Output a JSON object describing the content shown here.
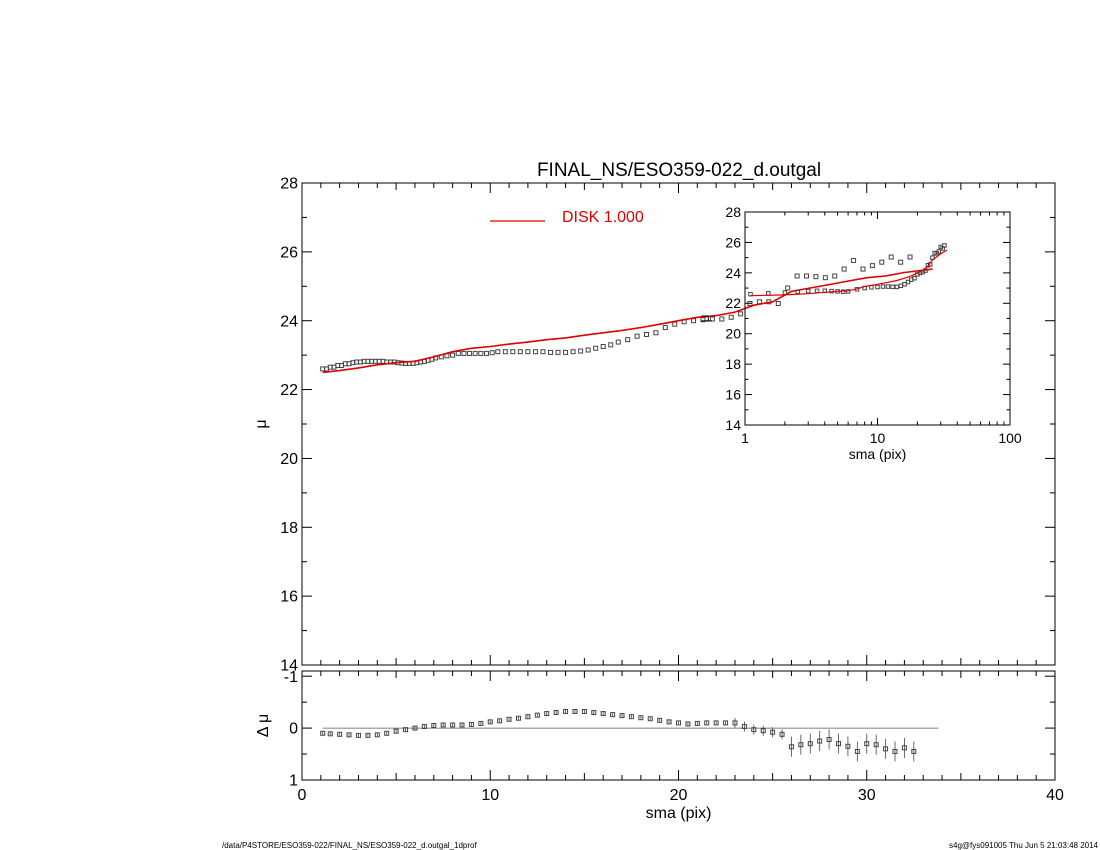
{
  "title": "FINAL_NS/ESO359-022_d.outgal",
  "footer_left": "/data/P4STORE/ESO359-022/FINAL_NS/ESO359-022_d.outgal_1dprof",
  "footer_right": "s4g@fys091005  Thu Jun  5 21:03:48 2014",
  "legend_label": "DISK  1.000",
  "colors": {
    "data": "#444444",
    "model": "#e00000",
    "axes": "#000000"
  },
  "chart_data": [
    {
      "name": "main",
      "type": "scatter",
      "xlim": [
        0,
        40
      ],
      "ylim": [
        28,
        14
      ],
      "ylabel": "μ",
      "yticks": [
        14,
        16,
        18,
        20,
        22,
        24,
        26,
        28
      ],
      "legend": "top-center",
      "series": [
        {
          "name": "data",
          "marker": "square",
          "points": [
            [
              1.1,
              22.6
            ],
            [
              1.3,
              22.6
            ],
            [
              1.5,
              22.65
            ],
            [
              1.7,
              22.65
            ],
            [
              1.9,
              22.7
            ],
            [
              2.1,
              22.7
            ],
            [
              2.3,
              22.75
            ],
            [
              2.5,
              22.75
            ],
            [
              2.7,
              22.78
            ],
            [
              2.9,
              22.8
            ],
            [
              3.1,
              22.8
            ],
            [
              3.3,
              22.82
            ],
            [
              3.5,
              22.82
            ],
            [
              3.7,
              22.82
            ],
            [
              3.9,
              22.82
            ],
            [
              4.1,
              22.82
            ],
            [
              4.3,
              22.82
            ],
            [
              4.5,
              22.8
            ],
            [
              4.7,
              22.8
            ],
            [
              4.9,
              22.8
            ],
            [
              5.1,
              22.78
            ],
            [
              5.3,
              22.77
            ],
            [
              5.5,
              22.76
            ],
            [
              5.7,
              22.76
            ],
            [
              5.9,
              22.76
            ],
            [
              6.1,
              22.78
            ],
            [
              6.3,
              22.8
            ],
            [
              6.5,
              22.82
            ],
            [
              6.7,
              22.85
            ],
            [
              6.9,
              22.88
            ],
            [
              7.1,
              22.92
            ],
            [
              7.4,
              22.95
            ],
            [
              7.7,
              22.98
            ],
            [
              8.0,
              23.0
            ],
            [
              8.3,
              23.05
            ],
            [
              8.6,
              23.05
            ],
            [
              8.9,
              23.05
            ],
            [
              9.2,
              23.05
            ],
            [
              9.5,
              23.05
            ],
            [
              9.8,
              23.05
            ],
            [
              10.1,
              23.07
            ],
            [
              10.4,
              23.1
            ],
            [
              10.8,
              23.1
            ],
            [
              11.2,
              23.1
            ],
            [
              11.6,
              23.1
            ],
            [
              12.0,
              23.1
            ],
            [
              12.4,
              23.1
            ],
            [
              12.8,
              23.1
            ],
            [
              13.2,
              23.08
            ],
            [
              13.6,
              23.08
            ],
            [
              14.0,
              23.08
            ],
            [
              14.4,
              23.1
            ],
            [
              14.8,
              23.12
            ],
            [
              15.2,
              23.15
            ],
            [
              15.6,
              23.2
            ],
            [
              16.0,
              23.25
            ],
            [
              16.4,
              23.3
            ],
            [
              16.8,
              23.38
            ],
            [
              17.3,
              23.45
            ],
            [
              17.8,
              23.55
            ],
            [
              18.3,
              23.6
            ],
            [
              18.8,
              23.65
            ],
            [
              19.3,
              23.8
            ],
            [
              19.8,
              23.9
            ],
            [
              20.3,
              23.97
            ],
            [
              20.8,
              24.0
            ],
            [
              21.3,
              24.03
            ],
            [
              21.8,
              24.05
            ],
            [
              22.3,
              24.05
            ],
            [
              22.8,
              24.1
            ],
            [
              23.3,
              24.2
            ],
            [
              23.8,
              24.5
            ],
            [
              24.3,
              24.55
            ],
            [
              24.8,
              24.55
            ],
            [
              25.3,
              24.5
            ],
            [
              25.8,
              24.95
            ],
            [
              26.3,
              25.3
            ],
            [
              26.8,
              25.3
            ],
            [
              27.3,
              25.28
            ],
            [
              27.8,
              25.25
            ],
            [
              28.3,
              25.3
            ],
            [
              28.8,
              25.5
            ],
            [
              29.3,
              25.75
            ],
            [
              29.8,
              25.5
            ],
            [
              30.3,
              25.6
            ],
            [
              30.8,
              25.7
            ],
            [
              31.3,
              25.85
            ],
            [
              31.8,
              25.7
            ],
            [
              32.3,
              25.85
            ]
          ]
        },
        {
          "name": "DISK  1.000",
          "type": "line",
          "points": [
            [
              1.1,
              22.5
            ],
            [
              2,
              22.55
            ],
            [
              3,
              22.63
            ],
            [
              4,
              22.72
            ],
            [
              5,
              22.78
            ],
            [
              6,
              22.82
            ],
            [
              7,
              22.95
            ],
            [
              8,
              23.1
            ],
            [
              9,
              23.2
            ],
            [
              10,
              23.25
            ],
            [
              11,
              23.32
            ],
            [
              12,
              23.38
            ],
            [
              13,
              23.45
            ],
            [
              14,
              23.5
            ],
            [
              15,
              23.58
            ],
            [
              16,
              23.65
            ],
            [
              17,
              23.72
            ],
            [
              18,
              23.8
            ],
            [
              19,
              23.9
            ],
            [
              20,
              24.0
            ],
            [
              21,
              24.1
            ],
            [
              22,
              24.15
            ],
            [
              23,
              24.25
            ],
            [
              24,
              24.45
            ],
            [
              25,
              24.55
            ],
            [
              26,
              24.85
            ],
            [
              27,
              24.95
            ],
            [
              28,
              25.05
            ],
            [
              29,
              25.15
            ],
            [
              30,
              25.25
            ],
            [
              31,
              25.3
            ],
            [
              32,
              25.4
            ],
            [
              33.5,
              25.5
            ]
          ]
        }
      ]
    },
    {
      "name": "residual",
      "type": "scatter",
      "xlim": [
        0,
        40
      ],
      "ylim": [
        -1.1,
        1.0
      ],
      "xlabel": "sma (pix)",
      "ylabel": "Δ μ",
      "xticks": [
        0,
        10,
        20,
        30,
        40
      ],
      "yticks": [
        1,
        0,
        -1
      ],
      "series": [
        {
          "name": "residual",
          "marker": "square",
          "points": [
            [
              1.1,
              0.1
            ],
            [
              1.5,
              0.11
            ],
            [
              2.0,
              0.12
            ],
            [
              2.5,
              0.13
            ],
            [
              3.0,
              0.14
            ],
            [
              3.5,
              0.14
            ],
            [
              4.0,
              0.13
            ],
            [
              4.5,
              0.1
            ],
            [
              5.0,
              0.06
            ],
            [
              5.5,
              0.03
            ],
            [
              6.0,
              0.0
            ],
            [
              6.5,
              -0.03
            ],
            [
              7.0,
              -0.05
            ],
            [
              7.5,
              -0.06
            ],
            [
              8.0,
              -0.06
            ],
            [
              8.5,
              -0.06
            ],
            [
              9.0,
              -0.07
            ],
            [
              9.5,
              -0.09
            ],
            [
              10.0,
              -0.12
            ],
            [
              10.5,
              -0.14
            ],
            [
              11.0,
              -0.17
            ],
            [
              11.5,
              -0.19
            ],
            [
              12.0,
              -0.22
            ],
            [
              12.5,
              -0.25
            ],
            [
              13.0,
              -0.28
            ],
            [
              13.5,
              -0.3
            ],
            [
              14.0,
              -0.32
            ],
            [
              14.5,
              -0.32
            ],
            [
              15.0,
              -0.32
            ],
            [
              15.5,
              -0.3
            ],
            [
              16.0,
              -0.28
            ],
            [
              16.5,
              -0.26
            ],
            [
              17.0,
              -0.24
            ],
            [
              17.5,
              -0.22
            ],
            [
              18.0,
              -0.2
            ],
            [
              18.5,
              -0.18
            ],
            [
              19.0,
              -0.15
            ],
            [
              19.5,
              -0.12
            ],
            [
              20.0,
              -0.1
            ],
            [
              20.5,
              -0.08
            ],
            [
              21.0,
              -0.09
            ],
            [
              21.5,
              -0.1
            ],
            [
              22.0,
              -0.1
            ],
            [
              22.5,
              -0.1
            ],
            [
              23.0,
              -0.1
            ],
            [
              23.5,
              -0.03
            ],
            [
              24.0,
              0.03
            ],
            [
              24.5,
              0.05
            ],
            [
              25.0,
              0.08
            ],
            [
              25.5,
              0.12
            ],
            [
              26.0,
              0.36
            ],
            [
              26.5,
              0.32
            ],
            [
              27.0,
              0.3
            ],
            [
              27.5,
              0.25
            ],
            [
              28.0,
              0.22
            ],
            [
              28.5,
              0.3
            ],
            [
              29.0,
              0.35
            ],
            [
              29.5,
              0.45
            ],
            [
              30.0,
              0.3
            ],
            [
              30.5,
              0.32
            ],
            [
              31.0,
              0.4
            ],
            [
              31.5,
              0.45
            ],
            [
              32.0,
              0.38
            ],
            [
              32.5,
              0.45
            ]
          ]
        }
      ]
    },
    {
      "name": "inset",
      "type": "scatter",
      "xscale": "log",
      "xlim": [
        1,
        100
      ],
      "ylim": [
        28,
        14
      ],
      "xlabel": "sma (pix)",
      "ylabel": "μ",
      "xticks": [
        1,
        10,
        100
      ],
      "xticklabels": [
        "1",
        "10",
        "100"
      ],
      "yticks": [
        14,
        16,
        18,
        20,
        22,
        24,
        26,
        28
      ],
      "series": [
        {
          "name": "data",
          "marker": "square",
          "points": [
            [
              1.1,
              22.6
            ],
            [
              1.5,
              22.65
            ],
            [
              2,
              22.7
            ],
            [
              2.5,
              22.75
            ],
            [
              3,
              22.8
            ],
            [
              3.5,
              22.82
            ],
            [
              4,
              22.82
            ],
            [
              4.5,
              22.8
            ],
            [
              5,
              22.78
            ],
            [
              5.5,
              22.76
            ],
            [
              6,
              22.78
            ],
            [
              7,
              22.92
            ],
            [
              8,
              23.0
            ],
            [
              9,
              23.05
            ],
            [
              10,
              23.07
            ],
            [
              11,
              23.1
            ],
            [
              12,
              23.1
            ],
            [
              13,
              23.08
            ],
            [
              14,
              23.08
            ],
            [
              15,
              23.15
            ],
            [
              16,
              23.25
            ],
            [
              17,
              23.4
            ],
            [
              18,
              23.55
            ],
            [
              19,
              23.65
            ],
            [
              20,
              23.9
            ],
            [
              21,
              24.0
            ],
            [
              22,
              24.05
            ],
            [
              23,
              24.15
            ],
            [
              24,
              24.5
            ],
            [
              25,
              24.55
            ],
            [
              26,
              25.0
            ],
            [
              27,
              25.3
            ],
            [
              28,
              25.28
            ],
            [
              29,
              25.4
            ],
            [
              30,
              25.7
            ],
            [
              31,
              25.6
            ],
            [
              32,
              25.8
            ]
          ]
        },
        {
          "name": "DISK  1.000",
          "type": "line",
          "points": [
            [
              1.1,
              22.5
            ],
            [
              2,
              22.55
            ],
            [
              3,
              22.63
            ],
            [
              4,
              22.72
            ],
            [
              5,
              22.78
            ],
            [
              6,
              22.82
            ],
            [
              7,
              22.95
            ],
            [
              8,
              23.1
            ],
            [
              10,
              23.25
            ],
            [
              12,
              23.38
            ],
            [
              14,
              23.5
            ],
            [
              16,
              23.65
            ],
            [
              18,
              23.8
            ],
            [
              20,
              24.0
            ],
            [
              22,
              24.15
            ],
            [
              24,
              24.45
            ],
            [
              26,
              24.85
            ],
            [
              28,
              25.05
            ],
            [
              30,
              25.25
            ],
            [
              32,
              25.4
            ],
            [
              33.5,
              25.5
            ]
          ]
        }
      ]
    }
  ]
}
